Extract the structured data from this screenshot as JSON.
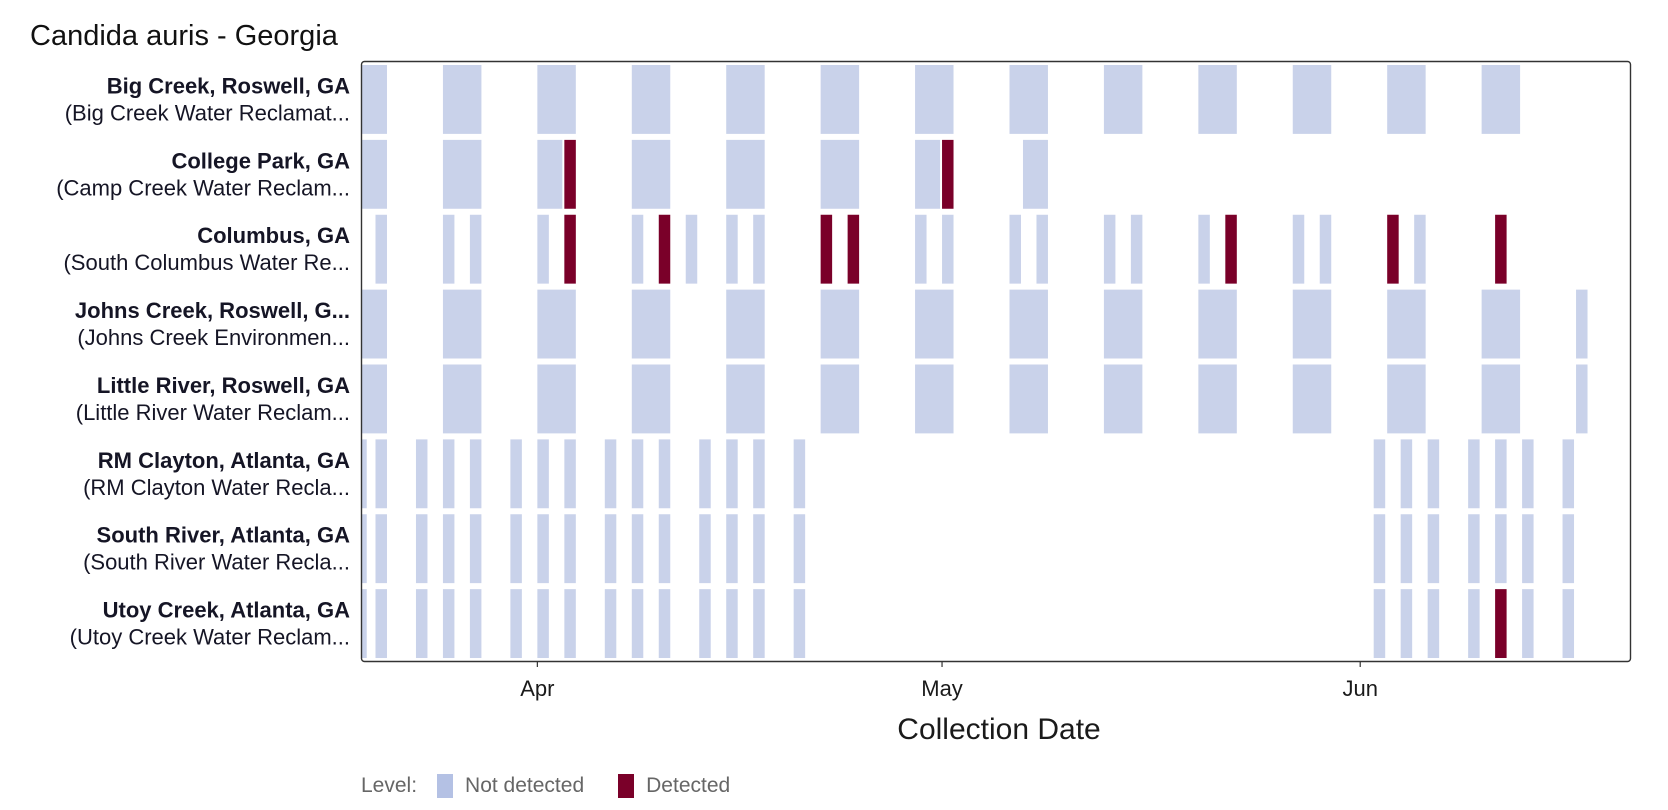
{
  "chart_data": {
    "type": "heatmap",
    "title": "Candida auris - Georgia",
    "xlabel": "Collection Date",
    "ylabel": "",
    "x_axis": {
      "type": "date",
      "range": [
        "2024-03-19",
        "2024-06-21"
      ],
      "ticks": [
        {
          "date": "2024-04-01",
          "label": "Apr"
        },
        {
          "date": "2024-05-01",
          "label": "May"
        },
        {
          "date": "2024-06-01",
          "label": "Jun"
        }
      ]
    },
    "legend": {
      "title": "Level:",
      "position": "bottom-left",
      "items": [
        {
          "label": "Not detected",
          "color": "#c9d2ea",
          "legend_color": "#b4c1e4"
        },
        {
          "label": "Detected",
          "color": "#7a0029"
        }
      ]
    },
    "grid": false,
    "sites": [
      {
        "name": "Big Creek, Roswell, GA",
        "facility": "(Big Creek Water Reclamat...",
        "samples": [
          {
            "date": "2024-03-19",
            "days": 2,
            "detected": false
          },
          {
            "date": "2024-03-25",
            "days": 3,
            "detected": false
          },
          {
            "date": "2024-04-01",
            "days": 3,
            "detected": false
          },
          {
            "date": "2024-04-08",
            "days": 3,
            "detected": false
          },
          {
            "date": "2024-04-15",
            "days": 3,
            "detected": false
          },
          {
            "date": "2024-04-22",
            "days": 3,
            "detected": false
          },
          {
            "date": "2024-04-29",
            "days": 3,
            "detected": false
          },
          {
            "date": "2024-05-06",
            "days": 3,
            "detected": false
          },
          {
            "date": "2024-05-13",
            "days": 3,
            "detected": false
          },
          {
            "date": "2024-05-20",
            "days": 3,
            "detected": false
          },
          {
            "date": "2024-05-27",
            "days": 3,
            "detected": false
          },
          {
            "date": "2024-06-03",
            "days": 3,
            "detected": false
          },
          {
            "date": "2024-06-10",
            "days": 3,
            "detected": false
          }
        ]
      },
      {
        "name": "College Park, GA",
        "facility": "(Camp Creek Water Reclam...",
        "samples": [
          {
            "date": "2024-03-19",
            "days": 2,
            "detected": false
          },
          {
            "date": "2024-03-25",
            "days": 3,
            "detected": false
          },
          {
            "date": "2024-04-01",
            "days": 2,
            "detected": false
          },
          {
            "date": "2024-04-03",
            "days": 1,
            "detected": true
          },
          {
            "date": "2024-04-08",
            "days": 3,
            "detected": false
          },
          {
            "date": "2024-04-15",
            "days": 3,
            "detected": false
          },
          {
            "date": "2024-04-22",
            "days": 3,
            "detected": false
          },
          {
            "date": "2024-04-29",
            "days": 2,
            "detected": false
          },
          {
            "date": "2024-05-01",
            "days": 1,
            "detected": true
          },
          {
            "date": "2024-05-07",
            "days": 2,
            "detected": false
          }
        ]
      },
      {
        "name": "Columbus, GA",
        "facility": "(South Columbus Water Re...",
        "samples": [
          {
            "date": "2024-03-20",
            "days": 1,
            "detected": false
          },
          {
            "date": "2024-03-25",
            "days": 1,
            "detected": false
          },
          {
            "date": "2024-03-27",
            "days": 1,
            "detected": false
          },
          {
            "date": "2024-04-01",
            "days": 1,
            "detected": false
          },
          {
            "date": "2024-04-03",
            "days": 1,
            "detected": true
          },
          {
            "date": "2024-04-08",
            "days": 1,
            "detected": false
          },
          {
            "date": "2024-04-10",
            "days": 1,
            "detected": true
          },
          {
            "date": "2024-04-12",
            "days": 1,
            "detected": false
          },
          {
            "date": "2024-04-15",
            "days": 1,
            "detected": false
          },
          {
            "date": "2024-04-17",
            "days": 1,
            "detected": false
          },
          {
            "date": "2024-04-22",
            "days": 1,
            "detected": true
          },
          {
            "date": "2024-04-24",
            "days": 1,
            "detected": true
          },
          {
            "date": "2024-04-29",
            "days": 1,
            "detected": false
          },
          {
            "date": "2024-05-01",
            "days": 1,
            "detected": false
          },
          {
            "date": "2024-05-06",
            "days": 1,
            "detected": false
          },
          {
            "date": "2024-05-08",
            "days": 1,
            "detected": false
          },
          {
            "date": "2024-05-13",
            "days": 1,
            "detected": false
          },
          {
            "date": "2024-05-15",
            "days": 1,
            "detected": false
          },
          {
            "date": "2024-05-20",
            "days": 1,
            "detected": false
          },
          {
            "date": "2024-05-22",
            "days": 1,
            "detected": true
          },
          {
            "date": "2024-05-27",
            "days": 1,
            "detected": false
          },
          {
            "date": "2024-05-29",
            "days": 1,
            "detected": false
          },
          {
            "date": "2024-06-03",
            "days": 1,
            "detected": true
          },
          {
            "date": "2024-06-05",
            "days": 1,
            "detected": false
          },
          {
            "date": "2024-06-11",
            "days": 1,
            "detected": true
          }
        ]
      },
      {
        "name": "Johns Creek, Roswell, G...",
        "facility": "(Johns Creek Environmen...",
        "samples": [
          {
            "date": "2024-03-19",
            "days": 2,
            "detected": false
          },
          {
            "date": "2024-03-25",
            "days": 3,
            "detected": false
          },
          {
            "date": "2024-04-01",
            "days": 3,
            "detected": false
          },
          {
            "date": "2024-04-08",
            "days": 3,
            "detected": false
          },
          {
            "date": "2024-04-15",
            "days": 3,
            "detected": false
          },
          {
            "date": "2024-04-22",
            "days": 3,
            "detected": false
          },
          {
            "date": "2024-04-29",
            "days": 3,
            "detected": false
          },
          {
            "date": "2024-05-06",
            "days": 3,
            "detected": false
          },
          {
            "date": "2024-05-13",
            "days": 3,
            "detected": false
          },
          {
            "date": "2024-05-20",
            "days": 3,
            "detected": false
          },
          {
            "date": "2024-05-27",
            "days": 3,
            "detected": false
          },
          {
            "date": "2024-06-03",
            "days": 3,
            "detected": false
          },
          {
            "date": "2024-06-10",
            "days": 3,
            "detected": false
          },
          {
            "date": "2024-06-17",
            "days": 1,
            "detected": false
          }
        ]
      },
      {
        "name": "Little River, Roswell, GA",
        "facility": "(Little River Water Reclam...",
        "samples": [
          {
            "date": "2024-03-19",
            "days": 2,
            "detected": false
          },
          {
            "date": "2024-03-25",
            "days": 3,
            "detected": false
          },
          {
            "date": "2024-04-01",
            "days": 3,
            "detected": false
          },
          {
            "date": "2024-04-08",
            "days": 3,
            "detected": false
          },
          {
            "date": "2024-04-15",
            "days": 3,
            "detected": false
          },
          {
            "date": "2024-04-22",
            "days": 3,
            "detected": false
          },
          {
            "date": "2024-04-29",
            "days": 3,
            "detected": false
          },
          {
            "date": "2024-05-06",
            "days": 3,
            "detected": false
          },
          {
            "date": "2024-05-13",
            "days": 3,
            "detected": false
          },
          {
            "date": "2024-05-20",
            "days": 3,
            "detected": false
          },
          {
            "date": "2024-05-27",
            "days": 3,
            "detected": false
          },
          {
            "date": "2024-06-03",
            "days": 3,
            "detected": false
          },
          {
            "date": "2024-06-10",
            "days": 3,
            "detected": false
          },
          {
            "date": "2024-06-17",
            "days": 1,
            "detected": false
          }
        ]
      },
      {
        "name": "RM Clayton, Atlanta, GA",
        "facility": "(RM Clayton Water Recla...",
        "samples": [
          {
            "date": "2024-03-19",
            "days": 0.5,
            "detected": false
          },
          {
            "date": "2024-03-20",
            "days": 1,
            "detected": false
          },
          {
            "date": "2024-03-23",
            "days": 1,
            "detected": false
          },
          {
            "date": "2024-03-25",
            "days": 1,
            "detected": false
          },
          {
            "date": "2024-03-27",
            "days": 1,
            "detected": false
          },
          {
            "date": "2024-03-30",
            "days": 1,
            "detected": false
          },
          {
            "date": "2024-04-01",
            "days": 1,
            "detected": false
          },
          {
            "date": "2024-04-03",
            "days": 1,
            "detected": false
          },
          {
            "date": "2024-04-06",
            "days": 1,
            "detected": false
          },
          {
            "date": "2024-04-08",
            "days": 1,
            "detected": false
          },
          {
            "date": "2024-04-10",
            "days": 1,
            "detected": false
          },
          {
            "date": "2024-04-13",
            "days": 1,
            "detected": false
          },
          {
            "date": "2024-04-15",
            "days": 1,
            "detected": false
          },
          {
            "date": "2024-04-17",
            "days": 1,
            "detected": false
          },
          {
            "date": "2024-04-20",
            "days": 1,
            "detected": false
          },
          {
            "date": "2024-06-02",
            "days": 1,
            "detected": false
          },
          {
            "date": "2024-06-04",
            "days": 1,
            "detected": false
          },
          {
            "date": "2024-06-06",
            "days": 1,
            "detected": false
          },
          {
            "date": "2024-06-09",
            "days": 1,
            "detected": false
          },
          {
            "date": "2024-06-11",
            "days": 1,
            "detected": false
          },
          {
            "date": "2024-06-13",
            "days": 1,
            "detected": false
          },
          {
            "date": "2024-06-16",
            "days": 1,
            "detected": false
          }
        ]
      },
      {
        "name": "South River, Atlanta, GA",
        "facility": "(South River Water Recla...",
        "samples": [
          {
            "date": "2024-03-19",
            "days": 0.5,
            "detected": false
          },
          {
            "date": "2024-03-20",
            "days": 1,
            "detected": false
          },
          {
            "date": "2024-03-23",
            "days": 1,
            "detected": false
          },
          {
            "date": "2024-03-25",
            "days": 1,
            "detected": false
          },
          {
            "date": "2024-03-27",
            "days": 1,
            "detected": false
          },
          {
            "date": "2024-03-30",
            "days": 1,
            "detected": false
          },
          {
            "date": "2024-04-01",
            "days": 1,
            "detected": false
          },
          {
            "date": "2024-04-03",
            "days": 1,
            "detected": false
          },
          {
            "date": "2024-04-06",
            "days": 1,
            "detected": false
          },
          {
            "date": "2024-04-08",
            "days": 1,
            "detected": false
          },
          {
            "date": "2024-04-10",
            "days": 1,
            "detected": false
          },
          {
            "date": "2024-04-13",
            "days": 1,
            "detected": false
          },
          {
            "date": "2024-04-15",
            "days": 1,
            "detected": false
          },
          {
            "date": "2024-04-17",
            "days": 1,
            "detected": false
          },
          {
            "date": "2024-04-20",
            "days": 1,
            "detected": false
          },
          {
            "date": "2024-06-02",
            "days": 1,
            "detected": false
          },
          {
            "date": "2024-06-04",
            "days": 1,
            "detected": false
          },
          {
            "date": "2024-06-06",
            "days": 1,
            "detected": false
          },
          {
            "date": "2024-06-09",
            "days": 1,
            "detected": false
          },
          {
            "date": "2024-06-11",
            "days": 1,
            "detected": false
          },
          {
            "date": "2024-06-13",
            "days": 1,
            "detected": false
          },
          {
            "date": "2024-06-16",
            "days": 1,
            "detected": false
          }
        ]
      },
      {
        "name": "Utoy Creek, Atlanta, GA",
        "facility": "(Utoy Creek Water Reclam...",
        "samples": [
          {
            "date": "2024-03-19",
            "days": 0.5,
            "detected": false
          },
          {
            "date": "2024-03-20",
            "days": 1,
            "detected": false
          },
          {
            "date": "2024-03-23",
            "days": 1,
            "detected": false
          },
          {
            "date": "2024-03-25",
            "days": 1,
            "detected": false
          },
          {
            "date": "2024-03-27",
            "days": 1,
            "detected": false
          },
          {
            "date": "2024-03-30",
            "days": 1,
            "detected": false
          },
          {
            "date": "2024-04-01",
            "days": 1,
            "detected": false
          },
          {
            "date": "2024-04-03",
            "days": 1,
            "detected": false
          },
          {
            "date": "2024-04-06",
            "days": 1,
            "detected": false
          },
          {
            "date": "2024-04-08",
            "days": 1,
            "detected": false
          },
          {
            "date": "2024-04-10",
            "days": 1,
            "detected": false
          },
          {
            "date": "2024-04-13",
            "days": 1,
            "detected": false
          },
          {
            "date": "2024-04-15",
            "days": 1,
            "detected": false
          },
          {
            "date": "2024-04-17",
            "days": 1,
            "detected": false
          },
          {
            "date": "2024-04-20",
            "days": 1,
            "detected": false
          },
          {
            "date": "2024-06-02",
            "days": 1,
            "detected": false
          },
          {
            "date": "2024-06-04",
            "days": 1,
            "detected": false
          },
          {
            "date": "2024-06-06",
            "days": 1,
            "detected": false
          },
          {
            "date": "2024-06-09",
            "days": 1,
            "detected": false
          },
          {
            "date": "2024-06-11",
            "days": 1,
            "detected": true
          },
          {
            "date": "2024-06-13",
            "days": 1,
            "detected": false
          },
          {
            "date": "2024-06-16",
            "days": 1,
            "detected": false
          }
        ]
      }
    ]
  }
}
